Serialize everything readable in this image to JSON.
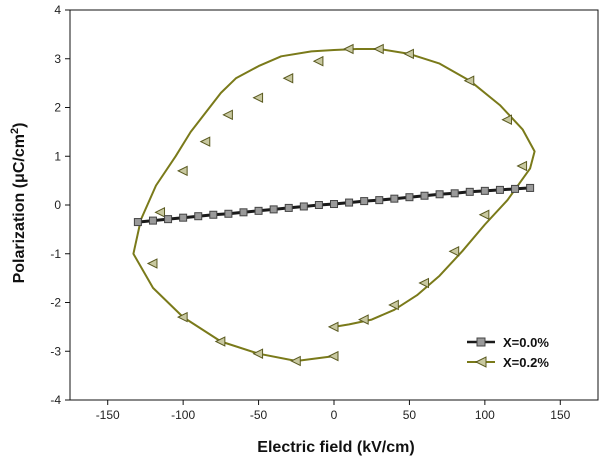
{
  "chart_data": {
    "type": "line",
    "xlabel": "Electric field (kV/cm)",
    "ylabel_main": "Polarization (μC/cm",
    "ylabel_sup": "2",
    "ylabel_close": ")",
    "xlim": [
      -175,
      175
    ],
    "ylim": [
      -4,
      4
    ],
    "xticks": [
      -150,
      -100,
      -50,
      0,
      50,
      100,
      150
    ],
    "yticks": [
      -4,
      -3,
      -2,
      -1,
      0,
      1,
      2,
      3,
      4
    ],
    "legend_position": "bottom-right",
    "series": [
      {
        "name": "X=0.0%",
        "color": "#1a1a1a",
        "marker": "square",
        "marker_color": "#9a9a9a",
        "x": [
          -130,
          -120,
          -110,
          -100,
          -90,
          -80,
          -70,
          -60,
          -50,
          -40,
          -30,
          -20,
          -10,
          0,
          10,
          20,
          30,
          40,
          50,
          60,
          70,
          80,
          90,
          100,
          110,
          120,
          130
        ],
        "y": [
          -0.35,
          -0.32,
          -0.29,
          -0.26,
          -0.23,
          -0.2,
          -0.18,
          -0.15,
          -0.12,
          -0.09,
          -0.06,
          -0.03,
          0.0,
          0.02,
          0.05,
          0.08,
          0.1,
          0.13,
          0.16,
          0.19,
          0.22,
          0.24,
          0.27,
          0.29,
          0.31,
          0.33,
          0.35
        ]
      },
      {
        "name": "X=0.2%",
        "color": "#7a7a1a",
        "marker": "triangle-left",
        "marker_color": "#c8c8a0",
        "x": [
          0,
          -25,
          -50,
          -75,
          -100,
          -120,
          -133,
          -128,
          -118,
          -105,
          -95,
          -85,
          -75,
          -65,
          -50,
          -35,
          -15,
          0,
          15,
          30,
          50,
          70,
          90,
          110,
          125,
          133,
          130,
          115,
          100,
          85,
          70,
          55,
          40,
          25,
          10,
          0
        ],
        "y": [
          -3.1,
          -3.2,
          -3.05,
          -2.8,
          -2.3,
          -1.7,
          -1.0,
          -0.3,
          0.4,
          1.0,
          1.5,
          1.9,
          2.3,
          2.6,
          2.85,
          3.05,
          3.15,
          3.18,
          3.2,
          3.2,
          3.1,
          2.9,
          2.55,
          2.05,
          1.55,
          1.1,
          0.75,
          0.1,
          -0.4,
          -0.95,
          -1.45,
          -1.85,
          -2.15,
          -2.35,
          -2.45,
          -2.5
        ],
        "marker_x": [
          0,
          -25,
          -50,
          -75,
          -100,
          -120,
          -115,
          -100,
          -85,
          -70,
          -50,
          -30,
          -10,
          10,
          30,
          50,
          90,
          115,
          125,
          100,
          80,
          60,
          40,
          20,
          0
        ],
        "marker_y": [
          -3.1,
          -3.2,
          -3.05,
          -2.8,
          -2.3,
          -1.2,
          -0.15,
          0.7,
          1.3,
          1.85,
          2.2,
          2.6,
          2.95,
          3.2,
          3.2,
          3.1,
          2.55,
          1.75,
          0.8,
          -0.2,
          -0.95,
          -1.6,
          -2.05,
          -2.35,
          -2.5
        ]
      }
    ]
  }
}
